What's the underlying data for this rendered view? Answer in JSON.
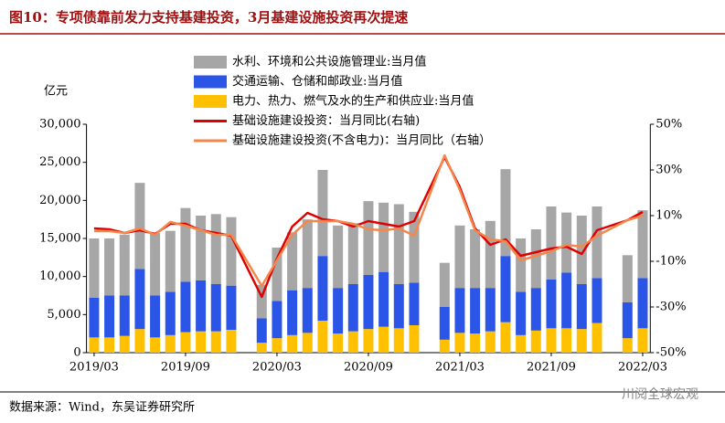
{
  "chart_data": {
    "type": "bar",
    "title": "图10：专项债靠前发力支持基建投资，3月基建设施投资再次提速",
    "y_label": "亿元",
    "source": "数据来源：Wind，东吴证券研究所",
    "watermark": "川阅全球宏观",
    "stacked": true,
    "x": [
      "2019/03",
      "2019/04",
      "2019/05",
      "2019/06",
      "2019/07",
      "2019/08",
      "2019/09",
      "2019/10",
      "2019/11",
      "2019/12",
      "2020/02",
      "2020/03",
      "2020/04",
      "2020/05",
      "2020/06",
      "2020/07",
      "2020/08",
      "2020/09",
      "2020/10",
      "2020/11",
      "2020/12",
      "2021/02",
      "2021/03",
      "2021/04",
      "2021/05",
      "2021/06",
      "2021/07",
      "2021/08",
      "2021/09",
      "2021/10",
      "2021/11",
      "2021/12",
      "2022/02",
      "2022/03"
    ],
    "xticks": [
      "2019/03",
      "2019/09",
      "2020/03",
      "2020/09",
      "2021/03",
      "2021/09",
      "2022/03"
    ],
    "xlim": [
      "2019/03",
      "2022/03"
    ],
    "ylim": [
      0,
      30000
    ],
    "yticks": [
      {
        "value": 0,
        "label": "0"
      },
      {
        "value": 5000,
        "label": "5,000"
      },
      {
        "value": 10000,
        "label": "10,000"
      },
      {
        "value": 15000,
        "label": "15,000"
      },
      {
        "value": 20000,
        "label": "20,000"
      },
      {
        "value": 25000,
        "label": "25,000"
      },
      {
        "value": 30000,
        "label": "30,000"
      }
    ],
    "y2lim": [
      -50,
      50
    ],
    "y2ticks": [
      {
        "value": -50,
        "label": "-50%"
      },
      {
        "value": -30,
        "label": "-30%"
      },
      {
        "value": -10,
        "label": "-10%"
      },
      {
        "value": 10,
        "label": "10%"
      },
      {
        "value": 30,
        "label": "30%"
      },
      {
        "value": 50,
        "label": "50%"
      }
    ],
    "series": [
      {
        "name": "水利、环境和公共设施管理业:当月值",
        "type": "bar",
        "color": "#a6a6a6",
        "stack_order": 2,
        "values": [
          7800,
          7500,
          8000,
          11300,
          8200,
          8000,
          9700,
          8500,
          9200,
          9000,
          4400,
          7000,
          7600,
          9000,
          11300,
          8200,
          8000,
          9700,
          9100,
          10500,
          9300,
          5800,
          8200,
          7700,
          8800,
          11400,
          7000,
          7700,
          9600,
          7900,
          9000,
          9400,
          6200,
          8900
        ]
      },
      {
        "name": "交通运输、仓储和邮政业:当月值",
        "type": "bar",
        "color": "#2b55e6",
        "stack_order": 1,
        "values": [
          5200,
          5500,
          5300,
          7900,
          5500,
          5700,
          6600,
          6700,
          6200,
          5800,
          3200,
          4900,
          5900,
          5900,
          8500,
          6000,
          6200,
          7100,
          7200,
          5800,
          5600,
          4300,
          5900,
          6000,
          5700,
          8700,
          5700,
          5600,
          6400,
          7300,
          5900,
          5900,
          4700,
          6600
        ]
      },
      {
        "name": "电力、热力、燃气及水的生产和供应业:当月值",
        "type": "bar",
        "color": "#ffc000",
        "stack_order": 0,
        "values": [
          2000,
          2000,
          2200,
          3100,
          2000,
          2300,
          2700,
          2800,
          2800,
          3000,
          1300,
          1900,
          2300,
          2600,
          4200,
          2500,
          2800,
          3100,
          3400,
          3200,
          3600,
          1700,
          2600,
          2500,
          2800,
          4000,
          2300,
          2900,
          3200,
          3200,
          3100,
          3900,
          1900,
          3200
        ]
      },
      {
        "name": "基础设施建设投资：当月同比(右轴)",
        "type": "line",
        "axis": "y2",
        "color": "#e00000",
        "values": [
          4.4,
          4,
          2.4,
          3.6,
          2,
          6.4,
          6.4,
          3.6,
          2.4,
          1.2,
          -25.6,
          -8.8,
          5.2,
          11.2,
          8.4,
          7.6,
          5.2,
          7.6,
          6.4,
          5.2,
          7.6,
          35.6,
          22.4,
          4.4,
          -2.8,
          -0.4,
          -7.6,
          -6,
          -4.4,
          -3.6,
          -6.8,
          3.6,
          8,
          11.6
        ]
      },
      {
        "name": "基础设施建设投资(不含电力)：当月同比（右轴）",
        "type": "line",
        "axis": "y2",
        "color": "#f4874b",
        "values": [
          3.2,
          3.2,
          2.4,
          4.4,
          1.6,
          7.2,
          5.6,
          3.6,
          1.6,
          1.6,
          -20.8,
          -9.6,
          1.6,
          7.6,
          7.6,
          7.6,
          6.4,
          4,
          3.6,
          4.4,
          1.2,
          36.4,
          21.2,
          3.6,
          -0.4,
          -1.2,
          -9.6,
          -7.6,
          -5.6,
          -2.8,
          -3.6,
          1.2,
          8,
          10
        ]
      }
    ]
  }
}
